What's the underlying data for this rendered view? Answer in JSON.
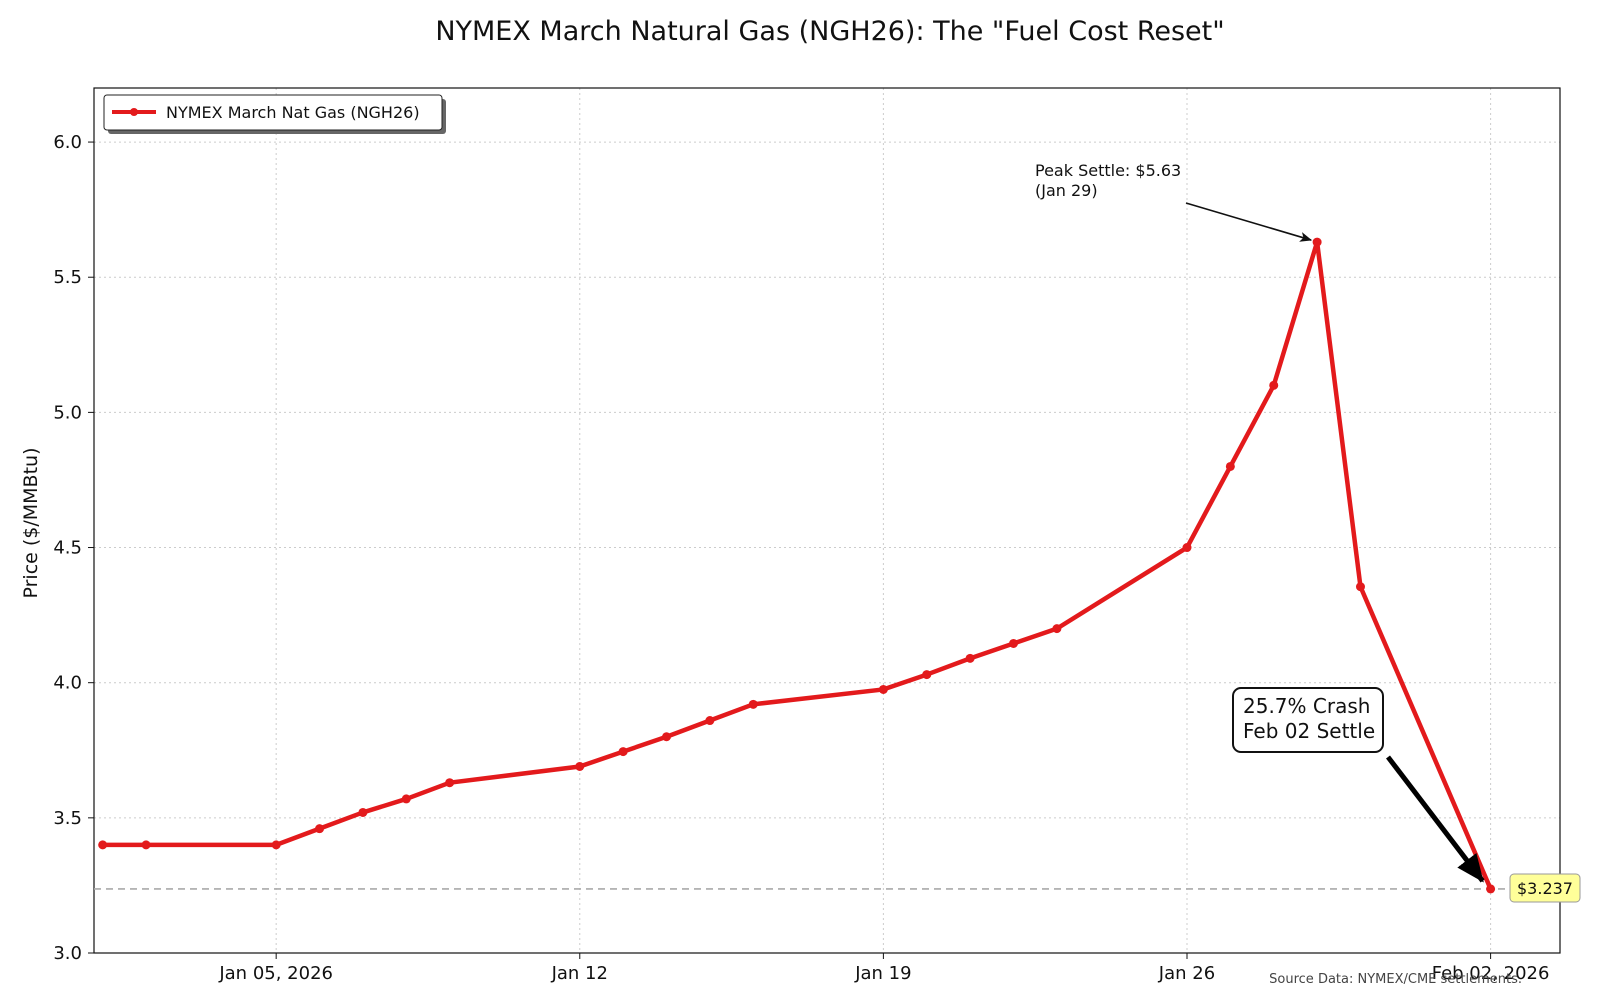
{
  "chart_data": {
    "type": "line",
    "title": "NYMEX March Natural Gas (NGH26): The \"Fuel Cost Reset\"",
    "xlabel": "",
    "ylabel": "Price ($/MMBtu)",
    "ylim": [
      3.0,
      6.2
    ],
    "yticks": [
      "3.0",
      "3.5",
      "4.0",
      "4.5",
      "5.0",
      "5.5",
      "6.0"
    ],
    "xticks": [
      {
        "label": "Jan 05, 2026",
        "day": 5
      },
      {
        "label": "Jan 12",
        "day": 12
      },
      {
        "label": "Jan 19",
        "day": 19
      },
      {
        "label": "Jan 26",
        "day": 26
      },
      {
        "label": "Feb 02, 2026",
        "day": 33
      }
    ],
    "xlim_days": [
      0.8,
      34.6
    ],
    "grid": true,
    "series": [
      {
        "name": "NYMEX March Nat Gas (NGH26)",
        "color": "#e31a1c",
        "days": [
          1,
          2,
          5,
          6,
          7,
          8,
          9,
          12,
          13,
          14,
          15,
          16,
          19,
          20,
          21,
          22,
          23,
          26,
          27,
          28,
          29,
          30,
          33
        ],
        "values": [
          3.4,
          3.4,
          3.4,
          3.46,
          3.52,
          3.57,
          3.63,
          3.69,
          3.745,
          3.8,
          3.86,
          3.92,
          3.975,
          4.03,
          4.09,
          4.145,
          4.2,
          4.5,
          4.8,
          5.1,
          5.63,
          4.355,
          3.237
        ]
      }
    ],
    "legend": {
      "entry": "NYMEX March Nat Gas (NGH26)",
      "placement": "top-left"
    },
    "reference_line": {
      "value": 3.237,
      "style": "dashed",
      "color": "#aaaaaa"
    },
    "annotations": [
      {
        "id": "peak",
        "lines": [
          "Peak Settle: $5.63",
          "(Jan 29)"
        ],
        "target_day": 29,
        "target_value": 5.63
      },
      {
        "id": "crash",
        "lines": [
          "25.7% Crash",
          "Feb 02 Settle"
        ],
        "target_day": 33,
        "target_value": 3.237
      },
      {
        "id": "last",
        "text": "$3.237",
        "bg_color": "#ffff99"
      }
    ],
    "source": "Source Data: NYMEX/CME settlements."
  }
}
